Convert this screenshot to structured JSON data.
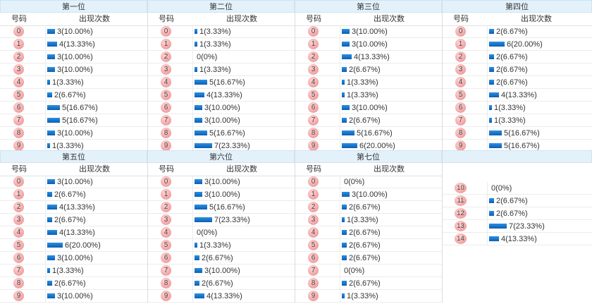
{
  "header_labels": {
    "number": "号码",
    "count": "出现次数"
  },
  "chart_data": {
    "type": "table",
    "positions": [
      {
        "title": "第一位",
        "rows": [
          {
            "n": "0",
            "count": 3,
            "label": "3(10.00%)"
          },
          {
            "n": "1",
            "count": 4,
            "label": "4(13.33%)"
          },
          {
            "n": "2",
            "count": 3,
            "label": "3(10.00%)"
          },
          {
            "n": "3",
            "count": 3,
            "label": "3(10.00%)"
          },
          {
            "n": "4",
            "count": 1,
            "label": "1(3.33%)"
          },
          {
            "n": "5",
            "count": 2,
            "label": "2(6.67%)"
          },
          {
            "n": "6",
            "count": 5,
            "label": "5(16.67%)"
          },
          {
            "n": "7",
            "count": 5,
            "label": "5(16.67%)"
          },
          {
            "n": "8",
            "count": 3,
            "label": "3(10.00%)"
          },
          {
            "n": "9",
            "count": 1,
            "label": "1(3.33%)"
          }
        ]
      },
      {
        "title": "第二位",
        "rows": [
          {
            "n": "0",
            "count": 1,
            "label": "1(3.33%)"
          },
          {
            "n": "1",
            "count": 1,
            "label": "1(3.33%)"
          },
          {
            "n": "2",
            "count": 0,
            "label": "0(0%)"
          },
          {
            "n": "3",
            "count": 1,
            "label": "1(3.33%)"
          },
          {
            "n": "4",
            "count": 5,
            "label": "5(16.67%)"
          },
          {
            "n": "5",
            "count": 4,
            "label": "4(13.33%)"
          },
          {
            "n": "6",
            "count": 3,
            "label": "3(10.00%)"
          },
          {
            "n": "7",
            "count": 3,
            "label": "3(10.00%)"
          },
          {
            "n": "8",
            "count": 5,
            "label": "5(16.67%)"
          },
          {
            "n": "9",
            "count": 7,
            "label": "7(23.33%)"
          }
        ]
      },
      {
        "title": "第三位",
        "rows": [
          {
            "n": "0",
            "count": 3,
            "label": "3(10.00%)"
          },
          {
            "n": "1",
            "count": 3,
            "label": "3(10.00%)"
          },
          {
            "n": "2",
            "count": 4,
            "label": "4(13.33%)"
          },
          {
            "n": "3",
            "count": 2,
            "label": "2(6.67%)"
          },
          {
            "n": "4",
            "count": 1,
            "label": "1(3.33%)"
          },
          {
            "n": "5",
            "count": 1,
            "label": "1(3.33%)"
          },
          {
            "n": "6",
            "count": 3,
            "label": "3(10.00%)"
          },
          {
            "n": "7",
            "count": 2,
            "label": "2(6.67%)"
          },
          {
            "n": "8",
            "count": 5,
            "label": "5(16.67%)"
          },
          {
            "n": "9",
            "count": 6,
            "label": "6(20.00%)"
          }
        ]
      },
      {
        "title": "第四位",
        "rows": [
          {
            "n": "0",
            "count": 2,
            "label": "2(6.67%)"
          },
          {
            "n": "1",
            "count": 6,
            "label": "6(20.00%)"
          },
          {
            "n": "2",
            "count": 2,
            "label": "2(6.67%)"
          },
          {
            "n": "3",
            "count": 2,
            "label": "2(6.67%)"
          },
          {
            "n": "4",
            "count": 2,
            "label": "2(6.67%)"
          },
          {
            "n": "5",
            "count": 4,
            "label": "4(13.33%)"
          },
          {
            "n": "6",
            "count": 1,
            "label": "1(3.33%)"
          },
          {
            "n": "7",
            "count": 1,
            "label": "1(3.33%)"
          },
          {
            "n": "8",
            "count": 5,
            "label": "5(16.67%)"
          },
          {
            "n": "9",
            "count": 5,
            "label": "5(16.67%)"
          }
        ]
      },
      {
        "title": "第五位",
        "rows": [
          {
            "n": "0",
            "count": 3,
            "label": "3(10.00%)"
          },
          {
            "n": "1",
            "count": 2,
            "label": "2(6.67%)"
          },
          {
            "n": "2",
            "count": 4,
            "label": "4(13.33%)"
          },
          {
            "n": "3",
            "count": 2,
            "label": "2(6.67%)"
          },
          {
            "n": "4",
            "count": 4,
            "label": "4(13.33%)"
          },
          {
            "n": "5",
            "count": 6,
            "label": "6(20.00%)"
          },
          {
            "n": "6",
            "count": 3,
            "label": "3(10.00%)"
          },
          {
            "n": "7",
            "count": 1,
            "label": "1(3.33%)"
          },
          {
            "n": "8",
            "count": 2,
            "label": "2(6.67%)"
          },
          {
            "n": "9",
            "count": 3,
            "label": "3(10.00%)"
          }
        ]
      },
      {
        "title": "第六位",
        "rows": [
          {
            "n": "0",
            "count": 3,
            "label": "3(10.00%)"
          },
          {
            "n": "1",
            "count": 3,
            "label": "3(10.00%)"
          },
          {
            "n": "2",
            "count": 5,
            "label": "5(16.67%)"
          },
          {
            "n": "3",
            "count": 7,
            "label": "7(23.33%)"
          },
          {
            "n": "4",
            "count": 0,
            "label": "0(0%)"
          },
          {
            "n": "5",
            "count": 1,
            "label": "1(3.33%)"
          },
          {
            "n": "6",
            "count": 2,
            "label": "2(6.67%)"
          },
          {
            "n": "7",
            "count": 3,
            "label": "3(10.00%)"
          },
          {
            "n": "8",
            "count": 2,
            "label": "2(6.67%)"
          },
          {
            "n": "9",
            "count": 4,
            "label": "4(13.33%)"
          }
        ]
      },
      {
        "title": "第七位",
        "rows": [
          {
            "n": "0",
            "count": 0,
            "label": "0(0%)"
          },
          {
            "n": "1",
            "count": 3,
            "label": "3(10.00%)"
          },
          {
            "n": "2",
            "count": 2,
            "label": "2(6.67%)"
          },
          {
            "n": "3",
            "count": 1,
            "label": "1(3.33%)"
          },
          {
            "n": "4",
            "count": 2,
            "label": "2(6.67%)"
          },
          {
            "n": "5",
            "count": 2,
            "label": "2(6.67%)"
          },
          {
            "n": "6",
            "count": 2,
            "label": "2(6.67%)"
          },
          {
            "n": "7",
            "count": 0,
            "label": "0(0%)"
          },
          {
            "n": "8",
            "count": 2,
            "label": "2(6.67%)"
          },
          {
            "n": "9",
            "count": 1,
            "label": "1(3.33%)"
          }
        ]
      },
      {
        "title": "",
        "rows": [
          {
            "n": "10",
            "count": 0,
            "label": "0(0%)"
          },
          {
            "n": "11",
            "count": 2,
            "label": "2(6.67%)"
          },
          {
            "n": "12",
            "count": 2,
            "label": "2(6.67%)"
          },
          {
            "n": "13",
            "count": 7,
            "label": "7(23.33%)"
          },
          {
            "n": "14",
            "count": 4,
            "label": "4(13.33%)"
          }
        ]
      }
    ]
  }
}
